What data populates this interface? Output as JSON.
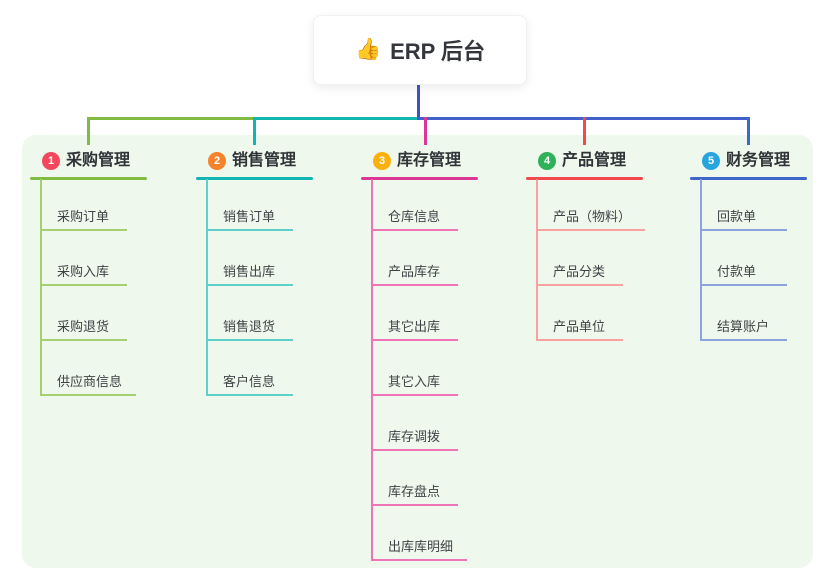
{
  "root": {
    "icon": "👍",
    "label": "ERP 后台",
    "stem_color": "#3c50c8",
    "bus_right_color": "#4061c9"
  },
  "branches": [
    {
      "num": "1",
      "label": "采购管理",
      "badge_color": "#f2475d",
      "line_color": "#82bb41",
      "item_line_color": "#a5d072",
      "items": [
        "采购订单",
        "采购入库",
        "采购退货",
        "供应商信息"
      ]
    },
    {
      "num": "2",
      "label": "销售管理",
      "badge_color": "#f6822c",
      "line_color": "#13b5b1",
      "item_line_color": "#5ecfca",
      "items": [
        "销售订单",
        "销售出库",
        "销售退货",
        "客户信息"
      ]
    },
    {
      "num": "3",
      "label": "库存管理",
      "badge_color": "#fcb00c",
      "line_color": "#dd3795",
      "item_line_color": "#ee74b6",
      "items": [
        "仓库信息",
        "产品库存",
        "其它出库",
        "其它入库",
        "库存调拨",
        "库存盘点",
        "出库库明细"
      ]
    },
    {
      "num": "4",
      "label": "产品管理",
      "badge_color": "#2eb158",
      "line_color": "#f5474e",
      "item_line_color": "#f9a1a1",
      "items": [
        "产品（物料）",
        "产品分类",
        "产品单位"
      ]
    },
    {
      "num": "5",
      "label": "财务管理",
      "badge_color": "#27a5e1",
      "line_color": "#3e66cb",
      "item_line_color": "#8ca4dd",
      "items": [
        "回款单",
        "付款单",
        "结算账户"
      ]
    }
  ]
}
